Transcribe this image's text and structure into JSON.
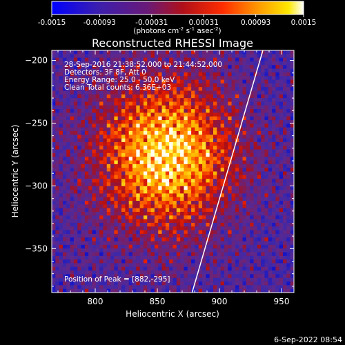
{
  "colorbar": {
    "ticks": [
      "-0.0015",
      "-0.00093",
      "-0.00031",
      "0.00031",
      "0.00093",
      "0.0015"
    ],
    "tick_values": [
      -0.0015,
      -0.00093,
      -0.00031,
      0.00031,
      0.00093,
      0.0015
    ],
    "units_main": "(photons cm",
    "units_exp1": "-2",
    "units_mid": " s",
    "units_exp2": "-1",
    "units_mid2": " asec",
    "units_exp3": "-2",
    "units_close": ")"
  },
  "chart_data": {
    "type": "heatmap",
    "title": "Reconstructed RHESSI Image",
    "xlabel": "Heliocentric X (arcsec)",
    "ylabel": "Heliocentric Y (arcsec)",
    "xlim": [
      765,
      960
    ],
    "ylim": [
      -385,
      -192
    ],
    "xticks": [
      800,
      850,
      900,
      950
    ],
    "xtick_labels": [
      "800",
      "850",
      "900",
      "950"
    ],
    "yticks": [
      -200,
      -250,
      -300,
      -350
    ],
    "ytick_labels": [
      "−200",
      "−250",
      "−300",
      "−350"
    ],
    "color_range": [
      -0.0015,
      0.0015
    ],
    "colormap": "blue-purple-red-orange-yellow-white",
    "peak": [
      882,
      -295
    ],
    "limb_line": [
      [
        878,
        -385
      ],
      [
        935,
        -192
      ]
    ],
    "info_lines": [
      "28-Sep-2016 21:38:52.000 to 21:44:52.000",
      "Detectors: 3F 8F, Att 0",
      "Energy Range: 25.0 - 50.0 keV",
      "Clean     Total counts: 6.36E+03"
    ],
    "peak_label": "Position of Peak = [882,-295]"
  },
  "footer": {
    "date": "6-Sep-2022 08:54"
  }
}
